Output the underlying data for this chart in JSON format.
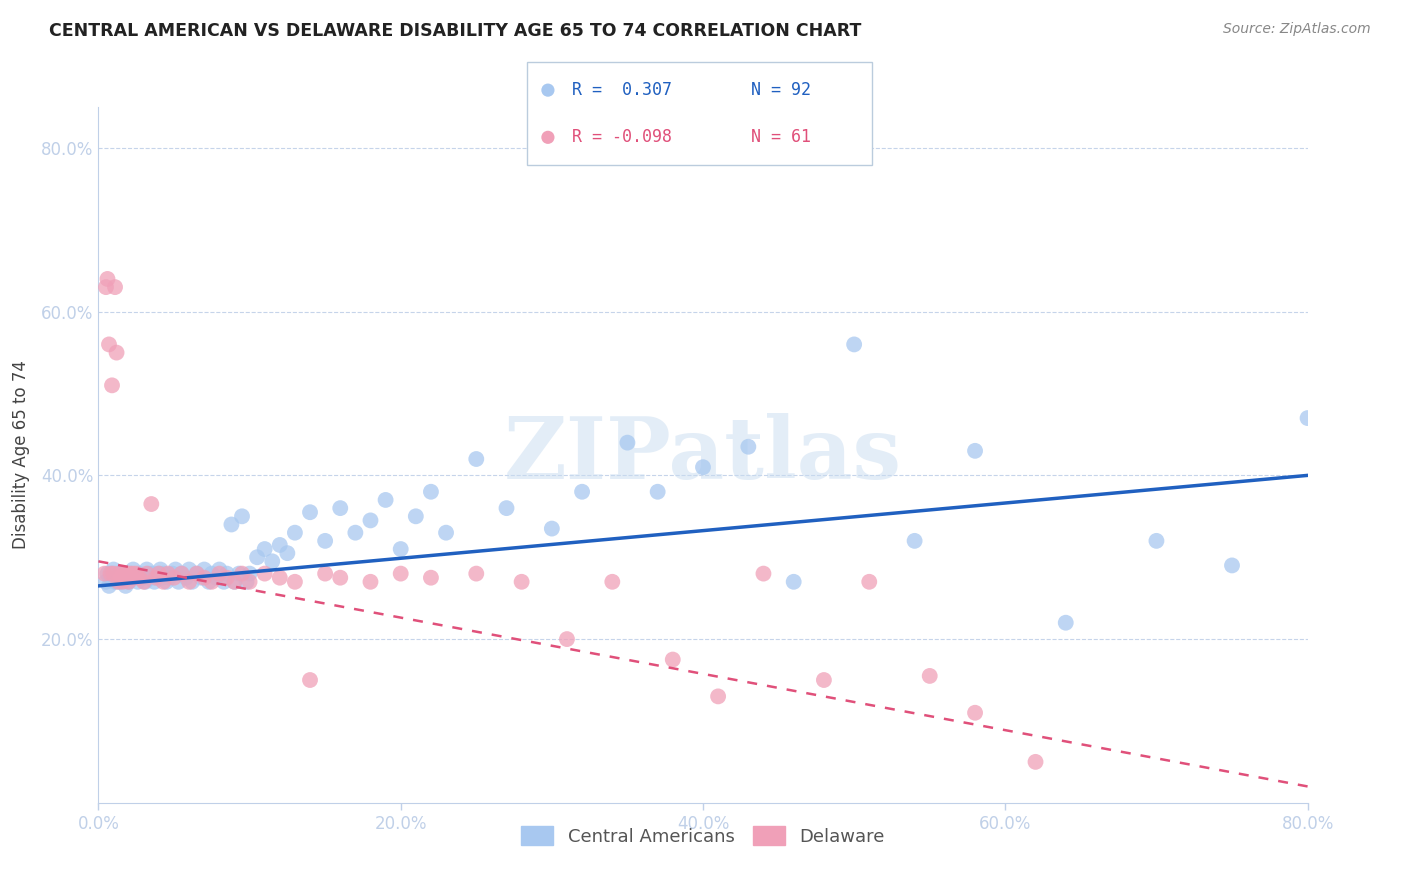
{
  "title": "CENTRAL AMERICAN VS DELAWARE DISABILITY AGE 65 TO 74 CORRELATION CHART",
  "source": "Source: ZipAtlas.com",
  "ylabel": "Disability Age 65 to 74",
  "xlabel_ticks": [
    "0.0%",
    "20.0%",
    "40.0%",
    "60.0%",
    "80.0%"
  ],
  "xlabel_vals": [
    0.0,
    0.2,
    0.4,
    0.6,
    0.8
  ],
  "ylabel_ticks": [
    "20.0%",
    "40.0%",
    "60.0%",
    "80.0%"
  ],
  "ylabel_vals": [
    0.2,
    0.4,
    0.6,
    0.8
  ],
  "xlim": [
    0.0,
    0.8
  ],
  "ylim": [
    0.0,
    0.85
  ],
  "legend_blue_r": "R =  0.307",
  "legend_blue_n": "N = 92",
  "legend_pink_r": "R = -0.098",
  "legend_pink_n": "N = 61",
  "blue_color": "#A8C8F0",
  "blue_line_color": "#2060C0",
  "pink_color": "#F0A0B8",
  "pink_line_color": "#E0507A",
  "watermark_text": "ZIPatlas",
  "blue_scatter_x": [
    0.005,
    0.006,
    0.007,
    0.008,
    0.009,
    0.01,
    0.01,
    0.011,
    0.012,
    0.013,
    0.014,
    0.015,
    0.016,
    0.017,
    0.018,
    0.019,
    0.02,
    0.021,
    0.022,
    0.023,
    0.025,
    0.026,
    0.027,
    0.028,
    0.03,
    0.031,
    0.032,
    0.033,
    0.035,
    0.036,
    0.037,
    0.038,
    0.04,
    0.041,
    0.042,
    0.043,
    0.045,
    0.047,
    0.049,
    0.051,
    0.053,
    0.055,
    0.058,
    0.06,
    0.062,
    0.065,
    0.068,
    0.07,
    0.073,
    0.075,
    0.078,
    0.08,
    0.083,
    0.085,
    0.088,
    0.09,
    0.093,
    0.095,
    0.098,
    0.1,
    0.105,
    0.11,
    0.115,
    0.12,
    0.125,
    0.13,
    0.14,
    0.15,
    0.16,
    0.17,
    0.18,
    0.19,
    0.2,
    0.21,
    0.22,
    0.23,
    0.25,
    0.27,
    0.3,
    0.32,
    0.35,
    0.37,
    0.4,
    0.43,
    0.46,
    0.5,
    0.54,
    0.58,
    0.64,
    0.7,
    0.75,
    0.8
  ],
  "blue_scatter_y": [
    0.27,
    0.28,
    0.265,
    0.275,
    0.28,
    0.285,
    0.275,
    0.27,
    0.28,
    0.275,
    0.27,
    0.275,
    0.28,
    0.275,
    0.265,
    0.275,
    0.27,
    0.28,
    0.275,
    0.285,
    0.275,
    0.27,
    0.28,
    0.275,
    0.275,
    0.27,
    0.285,
    0.28,
    0.275,
    0.28,
    0.27,
    0.275,
    0.28,
    0.285,
    0.275,
    0.28,
    0.27,
    0.275,
    0.28,
    0.285,
    0.27,
    0.28,
    0.275,
    0.285,
    0.27,
    0.28,
    0.275,
    0.285,
    0.27,
    0.28,
    0.275,
    0.285,
    0.27,
    0.28,
    0.34,
    0.27,
    0.28,
    0.35,
    0.27,
    0.28,
    0.3,
    0.31,
    0.295,
    0.315,
    0.305,
    0.33,
    0.355,
    0.32,
    0.36,
    0.33,
    0.345,
    0.37,
    0.31,
    0.35,
    0.38,
    0.33,
    0.42,
    0.36,
    0.335,
    0.38,
    0.44,
    0.38,
    0.41,
    0.435,
    0.27,
    0.56,
    0.32,
    0.43,
    0.22,
    0.32,
    0.29,
    0.47
  ],
  "pink_scatter_x": [
    0.004,
    0.005,
    0.006,
    0.007,
    0.008,
    0.009,
    0.01,
    0.011,
    0.012,
    0.013,
    0.014,
    0.015,
    0.016,
    0.017,
    0.018,
    0.019,
    0.02,
    0.021,
    0.022,
    0.023,
    0.025,
    0.027,
    0.03,
    0.032,
    0.035,
    0.038,
    0.04,
    0.043,
    0.046,
    0.05,
    0.055,
    0.06,
    0.065,
    0.07,
    0.075,
    0.08,
    0.085,
    0.09,
    0.095,
    0.1,
    0.11,
    0.12,
    0.13,
    0.14,
    0.15,
    0.16,
    0.18,
    0.2,
    0.22,
    0.25,
    0.28,
    0.31,
    0.34,
    0.38,
    0.41,
    0.44,
    0.48,
    0.51,
    0.55,
    0.58,
    0.62
  ],
  "pink_scatter_y": [
    0.28,
    0.63,
    0.64,
    0.56,
    0.28,
    0.51,
    0.28,
    0.63,
    0.55,
    0.27,
    0.28,
    0.275,
    0.27,
    0.28,
    0.275,
    0.28,
    0.27,
    0.28,
    0.275,
    0.28,
    0.28,
    0.275,
    0.27,
    0.28,
    0.365,
    0.275,
    0.28,
    0.27,
    0.28,
    0.275,
    0.28,
    0.27,
    0.28,
    0.275,
    0.27,
    0.28,
    0.275,
    0.27,
    0.28,
    0.27,
    0.28,
    0.275,
    0.27,
    0.15,
    0.28,
    0.275,
    0.27,
    0.28,
    0.275,
    0.28,
    0.27,
    0.2,
    0.27,
    0.175,
    0.13,
    0.28,
    0.15,
    0.27,
    0.155,
    0.11,
    0.05
  ]
}
